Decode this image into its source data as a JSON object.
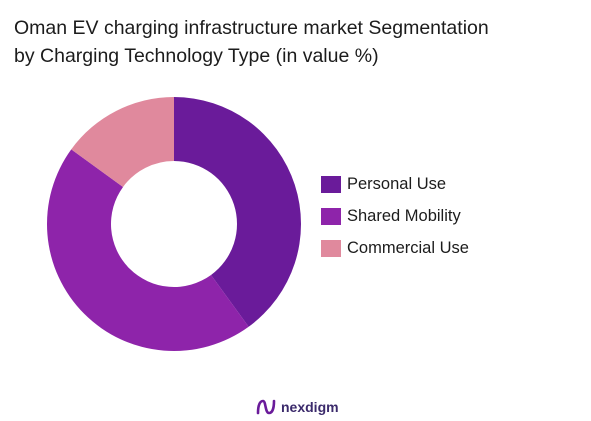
{
  "chart_data": {
    "type": "pie",
    "donut": true,
    "title_lines": [
      "Oman EV charging infrastructure market Segmentation",
      "by Charging Technology Type (in value %)"
    ],
    "categories": [
      "Personal Use",
      "Shared Mobility",
      "Commercial Use"
    ],
    "values": [
      40,
      45,
      15
    ],
    "colors": [
      "#6a1b9a",
      "#8e24aa",
      "#e0899d"
    ],
    "legend_position": "right"
  },
  "brand": {
    "name": "nexdigm",
    "color": "#6a1b9a"
  }
}
